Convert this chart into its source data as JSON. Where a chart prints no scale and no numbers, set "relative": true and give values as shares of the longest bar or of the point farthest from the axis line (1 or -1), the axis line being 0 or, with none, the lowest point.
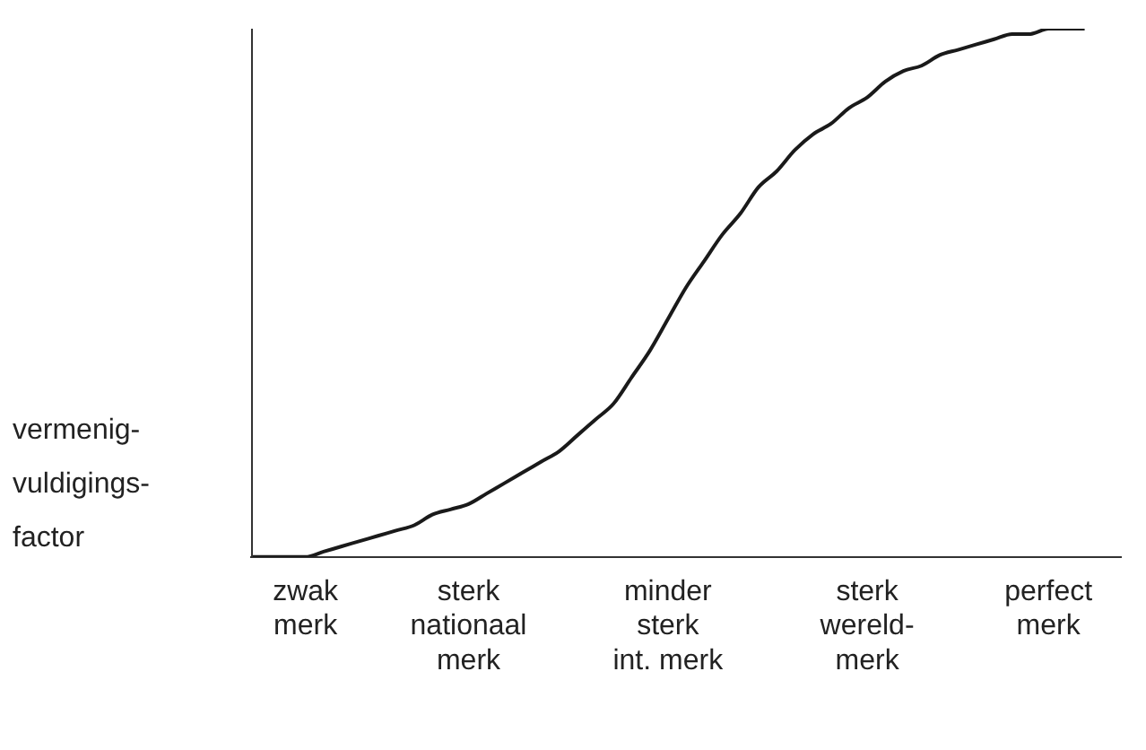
{
  "chart_data": {
    "type": "line",
    "relative": true,
    "ylabel": "vermenig-\nvuldigings-\nfactor",
    "categories": [
      null,
      null,
      null,
      "zwak\nmerk",
      null,
      null,
      null,
      null,
      null,
      null,
      null,
      null,
      "sterk\nnationaal\nmerk",
      null,
      null,
      null,
      null,
      null,
      null,
      null,
      null,
      null,
      null,
      "minder\nsterk\nint. merk",
      null,
      null,
      null,
      null,
      null,
      null,
      null,
      null,
      null,
      null,
      "sterk\nwereld-\nmerk",
      null,
      null,
      null,
      null,
      null,
      null,
      null,
      null,
      null,
      "perfect\nmerk",
      null,
      null,
      null,
      null
    ],
    "series": [
      {
        "color": "#1a1a1a",
        "values": [
          0,
          0,
          0,
          0,
          0.01,
          0.02,
          0.03,
          0.04,
          0.05,
          0.06,
          0.08,
          0.09,
          0.1,
          0.12,
          0.14,
          0.16,
          0.18,
          0.2,
          0.23,
          0.26,
          0.29,
          0.34,
          0.39,
          0.45,
          0.51,
          0.56,
          0.61,
          0.65,
          0.7,
          0.73,
          0.77,
          0.8,
          0.82,
          0.85,
          0.87,
          0.9,
          0.92,
          0.93,
          0.95,
          0.96,
          0.97,
          0.98,
          0.99,
          0.99,
          1,
          1,
          1,
          null,
          null
        ]
      }
    ],
    "marker": "none",
    "line_style": "solid",
    "grid": false,
    "legend": false
  }
}
